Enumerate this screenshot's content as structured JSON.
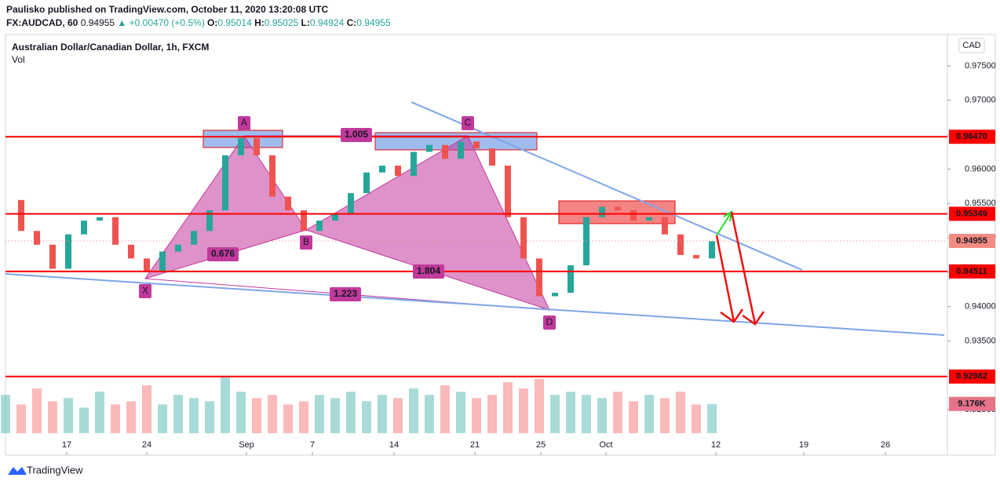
{
  "header": {
    "published": "Paulisko published on TradingView.com, October 11, 2020 13:20:08 UTC",
    "symbol": "FX:AUDCAD, 60",
    "last": "0.94955",
    "change": "▲ +0.00470 (+0.5%)",
    "ohlc": [
      {
        "key": "O:",
        "value": "0.95014"
      },
      {
        "key": "H:",
        "value": "0.95025"
      },
      {
        "key": "L:",
        "value": "0.94924"
      },
      {
        "key": "C:",
        "value": "0.94955"
      }
    ],
    "brand": "TradingView"
  },
  "chart_data": {
    "type": "candlestick",
    "title": "Australian Dollar/Canadian Dollar, 1h, FXCM",
    "volume_label": "Vol",
    "currency": "CAD",
    "x": [
      0,
      2,
      4,
      6,
      8,
      10,
      12,
      14,
      16,
      18,
      20,
      22,
      24,
      26,
      28,
      30,
      32,
      34,
      36,
      38,
      40,
      42,
      44,
      46,
      48,
      50,
      52,
      54,
      56,
      58,
      60,
      62,
      64,
      66,
      68,
      70,
      72,
      74,
      76,
      78,
      80,
      82,
      84,
      86,
      88,
      90
    ],
    "series": [
      {
        "values": [
          0.9555,
          0.951,
          0.949,
          0.9455,
          0.9505,
          0.9525,
          0.953,
          0.949,
          0.947,
          0.945,
          0.948,
          0.949,
          0.951,
          0.954,
          0.962,
          0.9645,
          0.962,
          0.956,
          0.954,
          0.951,
          0.9525,
          0.9535,
          0.9565,
          0.9595,
          0.9605,
          0.959,
          0.9625,
          0.9635,
          0.9615,
          0.964,
          0.963,
          0.9605,
          0.953,
          0.947,
          0.9415,
          0.942,
          0.946,
          0.953,
          0.9545,
          0.954,
          0.9525,
          0.953,
          0.9505,
          0.9475,
          0.947,
          0.9495
        ],
        "up_color": "#26a69a",
        "down_color": "#ef5350"
      },
      {
        "name": "Vol",
        "values": [
          12,
          9,
          14,
          10,
          11,
          8,
          13,
          9,
          10,
          15,
          9,
          12,
          11,
          10,
          18,
          13,
          11,
          12,
          9,
          10,
          12,
          11,
          13,
          10,
          12,
          11,
          14,
          12,
          15,
          13,
          11,
          12,
          16,
          14,
          17,
          12,
          13,
          12,
          11,
          13,
          10,
          12,
          11,
          13,
          9,
          9.176
        ]
      }
    ],
    "xlim": [
      0,
      120
    ],
    "ylim": [
      0.91838,
      0.97957
    ],
    "vlim": [
      0,
      30
    ],
    "xticks": [
      {
        "value": 7.8,
        "label": "17"
      },
      {
        "value": 18,
        "label": "24"
      },
      {
        "value": 30.7,
        "label": "Sep"
      },
      {
        "value": 39.1,
        "label": "7"
      },
      {
        "value": 49.5,
        "label": "14"
      },
      {
        "value": 59.8,
        "label": "21"
      },
      {
        "value": 68.2,
        "label": "25"
      },
      {
        "value": 76.5,
        "label": "Oct"
      },
      {
        "value": 90.5,
        "label": "12"
      },
      {
        "value": 101.7,
        "label": "19"
      },
      {
        "value": 112.1,
        "label": "26"
      }
    ],
    "yticks": [
      {
        "value": 0.975,
        "label": "0.97500"
      },
      {
        "value": 0.97,
        "label": "0.97000"
      },
      {
        "value": 0.965,
        "label": "0.96500"
      },
      {
        "value": 0.96,
        "label": "0.96000"
      },
      {
        "value": 0.955,
        "label": "0.95500"
      },
      {
        "value": 0.95,
        "label": "0.95000"
      },
      {
        "value": 0.945,
        "label": "0.94500"
      },
      {
        "value": 0.94,
        "label": "0.94000"
      },
      {
        "value": 0.935,
        "label": "0.93500"
      },
      {
        "value": 0.925,
        "label": "0.92500"
      }
    ],
    "levels": [
      {
        "value": 0.9647,
        "label": "0.96470",
        "color": "#ff0000"
      },
      {
        "value": 0.95349,
        "label": "0.95349",
        "color": "#ff0000"
      },
      {
        "value": 0.94511,
        "label": "0.94511",
        "color": "#ff0000"
      },
      {
        "value": 0.92982,
        "label": "0.92982",
        "color": "#ff0000"
      }
    ],
    "last_price": {
      "value": 0.94955,
      "label": "0.94955",
      "color": "#f28b82"
    },
    "last_volume": {
      "value": 9.176,
      "label": "9.176K",
      "color": "#e57389"
    },
    "trendlines": [
      {
        "x": [
          51.7,
          101.5
        ],
        "values": [
          0.96975,
          0.94532
        ],
        "color": "#7ea6e8"
      },
      {
        "x": [
          0,
          119.6
        ],
        "values": [
          0.94475,
          0.93584
        ],
        "color": "#7ea6e8"
      }
    ],
    "zones": [
      {
        "x": [
          25.2,
          35.3
        ],
        "values": [
          0.96564,
          0.96313
        ],
        "color": "#7fa6e6"
      },
      {
        "x": [
          47.1,
          67.7
        ],
        "values": [
          0.9653,
          0.96279
        ],
        "color": "#7fa6e6"
      },
      {
        "x": [
          70.5,
          85.3
        ],
        "values": [
          0.95537,
          0.95206
        ],
        "color": "#f05a5a"
      }
    ],
    "pattern": {
      "labels": [
        "X",
        "A",
        "B",
        "C",
        "D"
      ],
      "x": [
        17.8,
        30.4,
        38.3,
        58.9,
        69.3
      ],
      "values": [
        0.94406,
        0.96484,
        0.95114,
        0.96484,
        0.9395
      ],
      "color": "#c2399c",
      "ratios": [
        {
          "value": 0.676,
          "label": "0.676"
        },
        {
          "value": 1.005,
          "label": "1.005"
        },
        {
          "value": 1.804,
          "label": "1.804"
        },
        {
          "value": 1.223,
          "label": "1.223"
        }
      ]
    }
  }
}
